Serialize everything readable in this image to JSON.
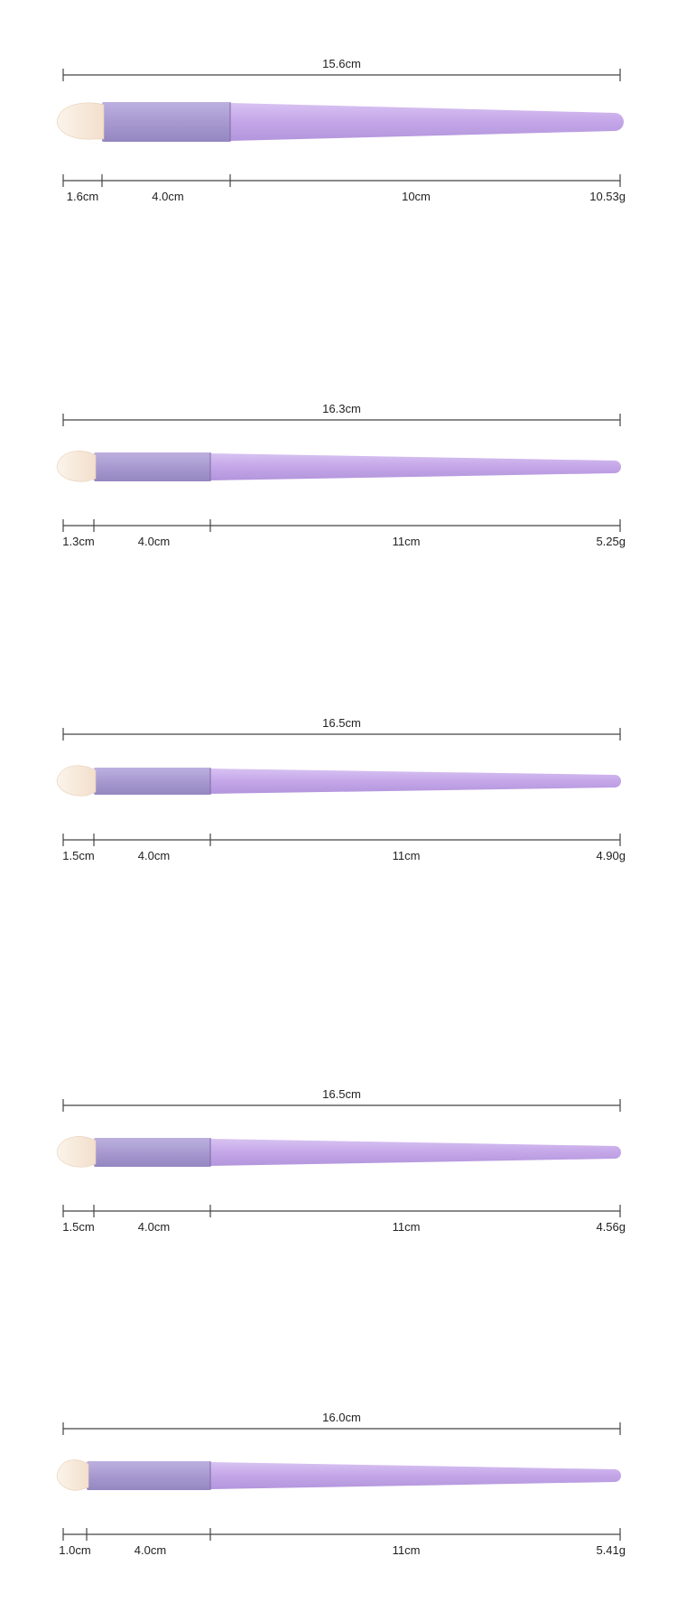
{
  "colors": {
    "background": "#ffffff",
    "dimension_line": "#444444",
    "ferrule": "#a89ad0",
    "handle": "#c4a6e8",
    "bristle": "#f3dfcc",
    "bristle_tip": "#fbf4ea",
    "text": "#222222"
  },
  "brushes": [
    {
      "total_length": "15.6cm",
      "bristle_length": "1.6cm",
      "ferrule_length": "4.0cm",
      "handle_length": "10cm",
      "weight": "10.53g"
    },
    {
      "total_length": "16.3cm",
      "bristle_length": "1.3cm",
      "ferrule_length": "4.0cm",
      "handle_length": "11cm",
      "weight": "5.25g"
    },
    {
      "total_length": "16.5cm",
      "bristle_length": "1.5cm",
      "ferrule_length": "4.0cm",
      "handle_length": "11cm",
      "weight": "4.90g"
    },
    {
      "total_length": "16.5cm",
      "bristle_length": "1.5cm",
      "ferrule_length": "4.0cm",
      "handle_length": "11cm",
      "weight": "4.56g"
    },
    {
      "total_length": "16.0cm",
      "bristle_length": "1.0cm",
      "ferrule_length": "4.0cm",
      "handle_length": "11cm",
      "weight": "5.41g"
    }
  ]
}
